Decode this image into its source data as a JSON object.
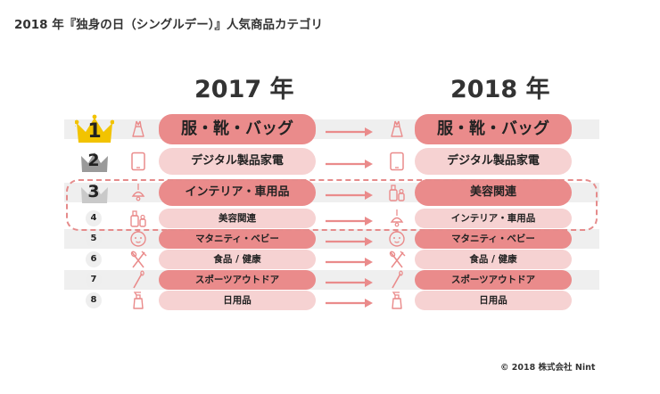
{
  "title": "2018 年『独身の日（シングルデー）』人気商品カテゴリ",
  "copyright": "© 2018 株式会社 Nint",
  "colors": {
    "dark_pill": "#ea8b8b",
    "light_pill": "#f6d2d2",
    "dash": "#e58b8b",
    "gold": "#f2c300",
    "silver": "#9a9a9a"
  },
  "chart_data": {
    "type": "table",
    "title": "2018 年『独身の日（シングルデー）』人気商品カテゴリ",
    "columns": [
      "2017 年",
      "2018 年"
    ],
    "ranks": [
      "1",
      "2",
      "3",
      "4",
      "5",
      "6",
      "7",
      "8"
    ],
    "rows": [
      {
        "rank": "1",
        "y2017": "服・靴・バッグ",
        "y2018": "服・靴・バッグ",
        "icon2017": "dress-icon",
        "icon2018": "dress-icon"
      },
      {
        "rank": "2",
        "y2017": "デジタル製品家電",
        "y2018": "デジタル製品家電",
        "icon2017": "tablet-icon",
        "icon2018": "tablet-icon"
      },
      {
        "rank": "3",
        "y2017": "インテリア・車用品",
        "y2018": "美容関連",
        "icon2017": "lamp-icon",
        "icon2018": "cosmetics-icon"
      },
      {
        "rank": "4",
        "y2017": "美容関連",
        "y2018": "インテリア・車用品",
        "icon2017": "cosmetics-icon",
        "icon2018": "lamp-icon"
      },
      {
        "rank": "5",
        "y2017": "マタニティ・ベビー",
        "y2018": "マタニティ・ベビー",
        "icon2017": "baby-icon",
        "icon2018": "baby-icon"
      },
      {
        "rank": "6",
        "y2017": "食品 / 健康",
        "y2018": "食品 / 健康",
        "icon2017": "cutlery-icon",
        "icon2018": "cutlery-icon"
      },
      {
        "rank": "7",
        "y2017": "スポーツアウトドア",
        "y2018": "スポーツアウトドア",
        "icon2017": "racket-icon",
        "icon2018": "racket-icon"
      },
      {
        "rank": "8",
        "y2017": "日用品",
        "y2018": "日用品",
        "icon2017": "spray-bottle-icon",
        "icon2018": "spray-bottle-icon"
      }
    ],
    "highlighted_ranks": [
      "3",
      "4"
    ]
  }
}
